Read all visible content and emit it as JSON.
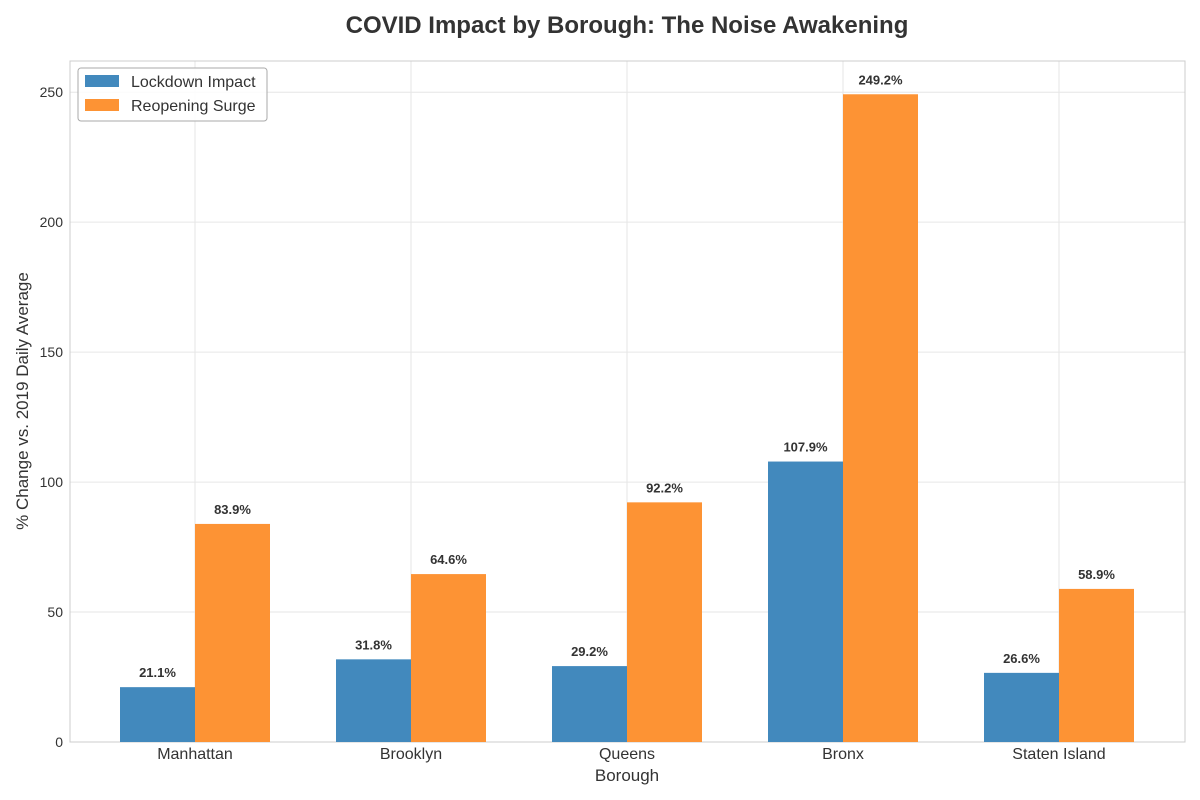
{
  "chart_data": {
    "type": "bar",
    "title": "COVID Impact by Borough: The Noise Awakening",
    "xlabel": "Borough",
    "ylabel": "% Change vs. 2019 Daily Average",
    "categories": [
      "Manhattan",
      "Brooklyn",
      "Queens",
      "Bronx",
      "Staten Island"
    ],
    "series": [
      {
        "name": "Lockdown Impact",
        "color": "#4289bd",
        "values": [
          21.1,
          31.8,
          29.2,
          107.9,
          26.6
        ],
        "labels": [
          "21.1%",
          "31.8%",
          "29.2%",
          "107.9%",
          "26.6%"
        ]
      },
      {
        "name": "Reopening Surge",
        "color": "#fd9334",
        "values": [
          83.9,
          64.6,
          92.2,
          249.2,
          58.9
        ],
        "labels": [
          "83.9%",
          "64.6%",
          "92.2%",
          "249.2%",
          "58.9%"
        ]
      }
    ],
    "ylim": [
      0,
      262
    ],
    "yticks": [
      0,
      50,
      100,
      150,
      200,
      250
    ],
    "ytick_labels": [
      "0",
      "50",
      "100",
      "150",
      "200",
      "250"
    ],
    "grid": true,
    "legend_position": "top-left"
  }
}
